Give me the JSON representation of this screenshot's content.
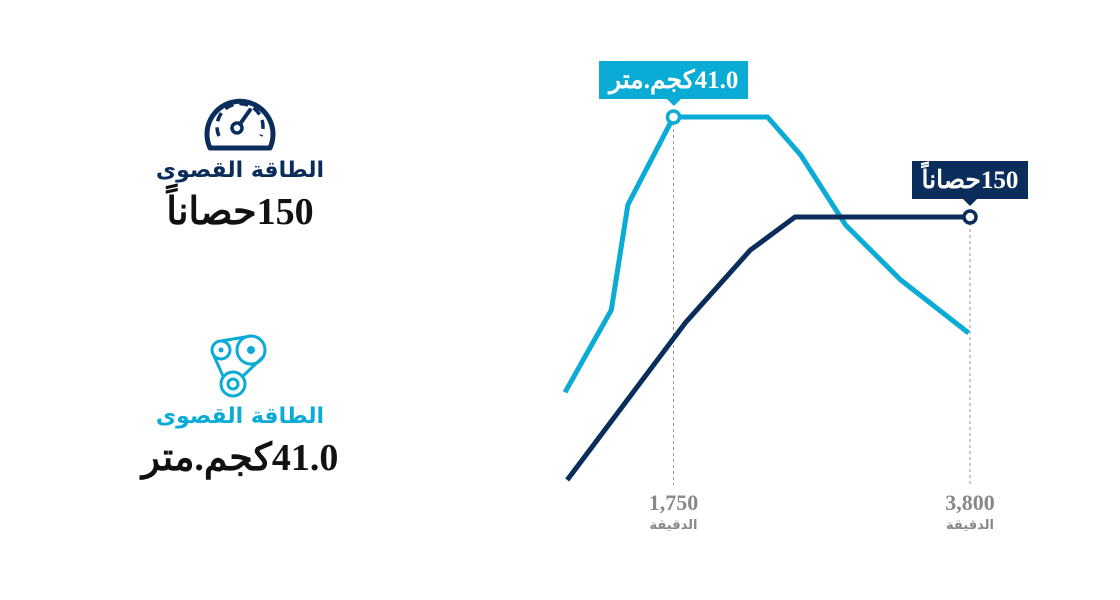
{
  "colors": {
    "power": "#0b2d5b",
    "torque": "#0aabd4",
    "tick": "#888888"
  },
  "stats": [
    {
      "icon": "speedometer-icon",
      "title": "الطاقة القصوى",
      "value": "150حصاناً"
    },
    {
      "icon": "engine-belt-icon",
      "title": "الطاقة القصوى",
      "value": "41.0كجم.متر"
    }
  ],
  "chart_data": {
    "type": "line",
    "xlim": [
      1000,
      3800
    ],
    "x_ticks": [
      {
        "value": "1,750",
        "unit": "الدقيقة"
      },
      {
        "value": "3,800",
        "unit": "الدقيقة"
      }
    ],
    "x_tick_values": [
      1750,
      3800
    ],
    "series": [
      {
        "key": "torque",
        "x": [
          1000,
          1320,
          1435,
          1750,
          2400,
          2630,
          2940,
          3320,
          3790
        ],
        "y": [
          9.9,
          19.2,
          31.1,
          41.0,
          41.0,
          36.7,
          28.8,
          22.6,
          16.6
        ],
        "ymax": 41.0,
        "callout": "41.0كجم.متر",
        "callout_x": 1750
      },
      {
        "key": "power",
        "x": [
          1015,
          1830,
          2280,
          2590,
          3800
        ],
        "y": [
          0,
          89.5,
          131,
          150,
          150
        ],
        "ymax": 150,
        "callout": "150حصاناً",
        "callout_x": 3800
      }
    ]
  }
}
